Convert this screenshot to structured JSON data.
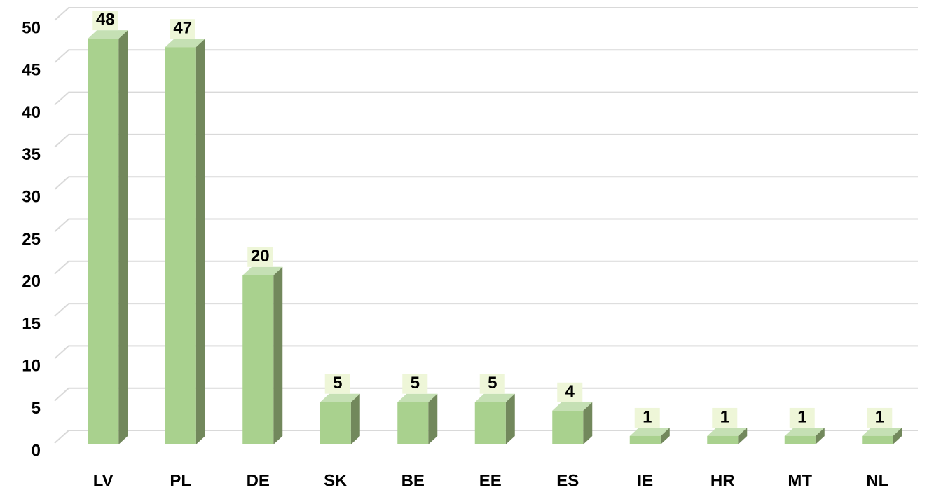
{
  "chart_data": {
    "type": "bar3d",
    "categories": [
      "LV",
      "PL",
      "DE",
      "SK",
      "BE",
      "EE",
      "ES",
      "IE",
      "HR",
      "MT",
      "NL"
    ],
    "values": [
      48,
      47,
      20,
      5,
      5,
      5,
      4,
      1,
      1,
      1,
      1
    ],
    "color": "#a9d18e",
    "side_color": "#72885c",
    "top_color": "#c5e0b4",
    "ylim": [
      0,
      50
    ],
    "yticks": [
      0,
      5,
      10,
      15,
      20,
      25,
      30,
      35,
      40,
      45,
      50
    ],
    "grid": true
  }
}
